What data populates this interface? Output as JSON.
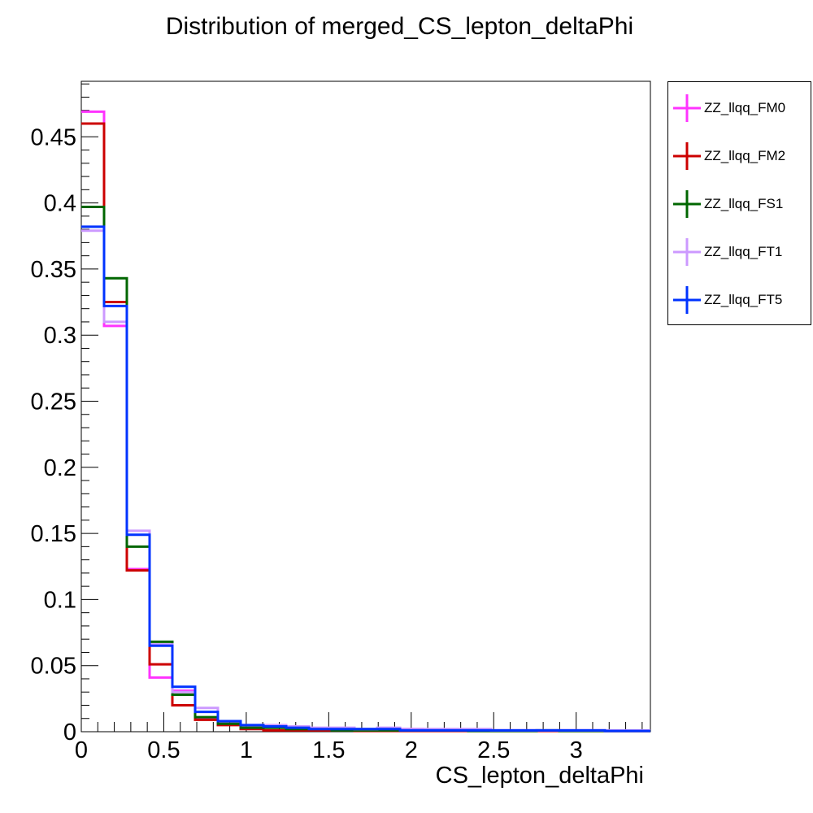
{
  "chart_data": {
    "type": "histogram-step",
    "title": "Distribution of merged_CS_lepton_deltaPhi",
    "xlabel": "CS_lepton_deltaPhi",
    "ylabel": "",
    "xlim": [
      0,
      3.45
    ],
    "ylim": [
      0,
      0.492
    ],
    "xticks": [
      0,
      0.5,
      1,
      1.5,
      2,
      2.5,
      3
    ],
    "xtick_labels": [
      "0",
      "0.5",
      "1",
      "1.5",
      "2",
      "2.5",
      "3"
    ],
    "yticks": [
      0,
      0.05,
      0.1,
      0.15,
      0.2,
      0.25,
      0.3,
      0.35,
      0.4,
      0.45
    ],
    "ytick_labels": [
      "0",
      "0.05",
      "0.1",
      "0.15",
      "0.2",
      "0.25",
      "0.3",
      "0.35",
      "0.4",
      "0.45"
    ],
    "grid": false,
    "legend_position": "outside-right-top",
    "bin_edges": [
      0,
      0.138,
      0.276,
      0.414,
      0.552,
      0.69,
      0.828,
      0.966,
      1.104,
      1.242,
      1.38,
      1.518,
      1.656,
      1.794,
      1.932,
      2.07,
      2.208,
      2.346,
      2.484,
      2.622,
      2.76,
      2.898,
      3.036,
      3.174,
      3.312,
      3.45
    ],
    "series": [
      {
        "name": "ZZ_llqq_FM0",
        "color": "#ff33ff",
        "values": [
          0.469,
          0.307,
          0.123,
          0.041,
          0.031,
          0.01,
          0.006,
          0.003,
          0.004,
          0.003,
          0.002,
          0.002,
          0.002,
          0.001,
          0.002,
          0.001,
          0.001,
          0.001,
          0.001,
          0.001,
          0.001,
          0.001,
          0.001,
          0.0005,
          0.0005
        ]
      },
      {
        "name": "ZZ_llqq_FM2",
        "color": "#cc0000",
        "values": [
          0.46,
          0.325,
          0.122,
          0.051,
          0.02,
          0.009,
          0.005,
          0.002,
          0.001,
          0.001,
          0.001,
          0.001,
          0.0005,
          0.0005,
          0.0005,
          0.0005,
          0.0005,
          0.0005,
          0.0005,
          0.0005,
          0.0005,
          0.0005,
          0.0005,
          0.0005,
          0.0005
        ]
      },
      {
        "name": "ZZ_llqq_FS1",
        "color": "#006600",
        "values": [
          0.397,
          0.343,
          0.14,
          0.068,
          0.028,
          0.011,
          0.006,
          0.003,
          0.003,
          0.002,
          0.002,
          0.001,
          0.001,
          0.001,
          0.001,
          0.001,
          0.001,
          0.0005,
          0.0005,
          0.0005,
          0.001,
          0.0005,
          0.0005,
          0.0005,
          0.0005
        ]
      },
      {
        "name": "ZZ_llqq_FT1",
        "color": "#cc99ff",
        "values": [
          0.379,
          0.31,
          0.152,
          0.066,
          0.03,
          0.018,
          0.008,
          0.005,
          0.005,
          0.004,
          0.003,
          0.003,
          0.002,
          0.003,
          0.002,
          0.002,
          0.002,
          0.002,
          0.001,
          0.001,
          0.001,
          0.001,
          0.001,
          0.001,
          0.001
        ]
      },
      {
        "name": "ZZ_llqq_FT5",
        "color": "#0033ff",
        "values": [
          0.382,
          0.322,
          0.149,
          0.065,
          0.034,
          0.015,
          0.008,
          0.005,
          0.004,
          0.003,
          0.002,
          0.002,
          0.002,
          0.002,
          0.001,
          0.001,
          0.001,
          0.001,
          0.001,
          0.001,
          0.001,
          0.001,
          0.001,
          0.0005,
          0.0005
        ]
      }
    ]
  }
}
